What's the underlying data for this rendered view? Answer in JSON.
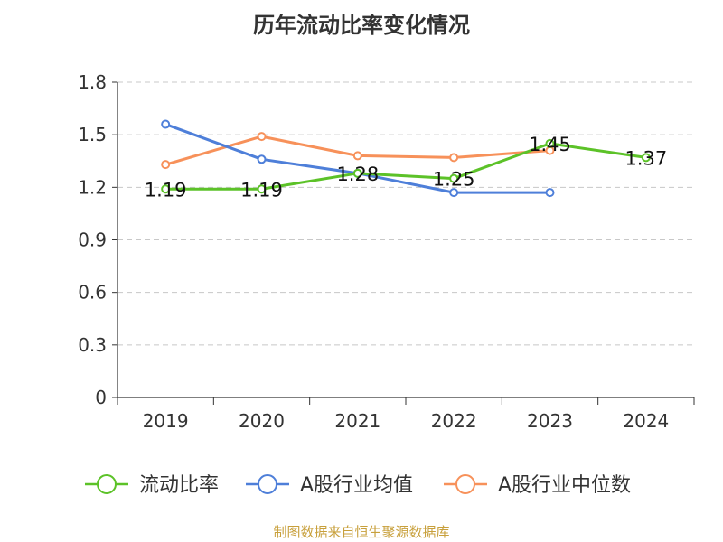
{
  "chart_data": {
    "type": "line",
    "title": "历年流动比率变化情况",
    "categories": [
      "2019",
      "2020",
      "2021",
      "2022",
      "2023",
      "2024"
    ],
    "ylim": [
      0,
      1.8
    ],
    "yticks": [
      "0",
      "0.3",
      "0.6",
      "0.9",
      "1.2",
      "1.5",
      "1.8"
    ],
    "grid": true,
    "legend_position": "bottom",
    "series": [
      {
        "name": "流动比率",
        "color": "#5cc228",
        "values": [
          1.19,
          1.19,
          1.28,
          1.25,
          1.45,
          1.37
        ],
        "labels": [
          "1.19",
          "1.19",
          "1.28",
          "1.25",
          "1.45",
          "1.37"
        ]
      },
      {
        "name": "A股行业均值",
        "color": "#4e7fd9",
        "values": [
          1.56,
          1.36,
          1.28,
          1.17,
          1.17,
          null
        ]
      },
      {
        "name": "A股行业中位数",
        "color": "#f7915a",
        "values": [
          1.33,
          1.49,
          1.38,
          1.37,
          1.41,
          null
        ]
      }
    ]
  },
  "footer": {
    "source": "制图数据来自恒生聚源数据库"
  }
}
